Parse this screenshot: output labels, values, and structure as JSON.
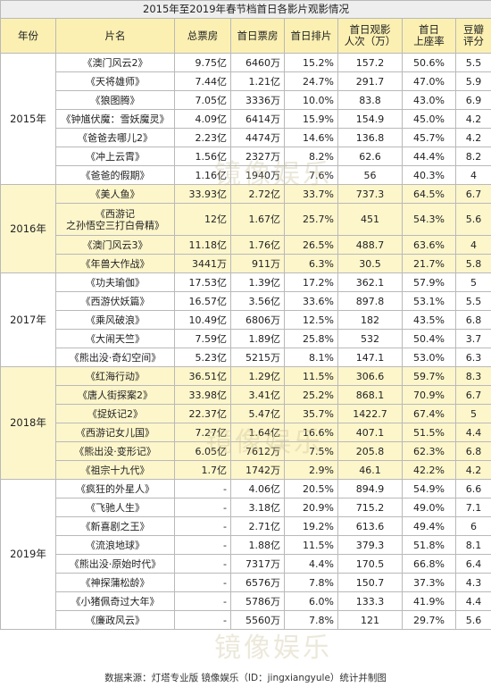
{
  "title": "2015年至2019年春节档首日各影片观影情况",
  "header": [
    "年份",
    "片名",
    "总票房",
    "首日票房",
    "首日排片",
    "首日观影\n人次（万）",
    "首日\n上座率",
    "豆瓣\n评分"
  ],
  "groups": [
    {
      "year": "2015年",
      "rows": [
        [
          "《澳门风云2》",
          "9.75亿",
          "6460万",
          "15.2%",
          "157.2",
          "50.6%",
          "5.5"
        ],
        [
          "《天将雄师》",
          "7.44亿",
          "1.21亿",
          "24.7%",
          "291.7",
          "47.0%",
          "5.9"
        ],
        [
          "《狼图腾》",
          "7.05亿",
          "3336万",
          "10.0%",
          "83.8",
          "43.0%",
          "6.9"
        ],
        [
          "《钟馗伏魔：雪妖魔灵》",
          "4.09亿",
          "6414万",
          "15.9%",
          "154.9",
          "45.0%",
          "4.2"
        ],
        [
          "《爸爸去哪儿2》",
          "2.23亿",
          "4474万",
          "14.6%",
          "136.8",
          "45.7%",
          "4.2"
        ],
        [
          "《冲上云霄》",
          "1.56亿",
          "2327万",
          "8.2%",
          "62.6",
          "44.4%",
          "8.2"
        ],
        [
          "《爸爸的假期》",
          "1.16亿",
          "1940万",
          "7.6%",
          "56",
          "40.3%",
          "4"
        ]
      ]
    },
    {
      "year": "2016年",
      "rows": [
        [
          "《美人鱼》",
          "33.93亿",
          "2.72亿",
          "33.7%",
          "737.3",
          "64.5%",
          "6.7"
        ],
        [
          "《西游记\n之孙悟空三打白骨精》",
          "12亿",
          "1.67亿",
          "25.7%",
          "451",
          "54.3%",
          "5.6"
        ],
        [
          "《澳门风云3》",
          "11.18亿",
          "1.76亿",
          "26.5%",
          "488.7",
          "63.6%",
          "4"
        ],
        [
          "《年兽大作战》",
          "3441万",
          "911万",
          "6.3%",
          "30.5",
          "21.7%",
          "5.8"
        ]
      ]
    },
    {
      "year": "2017年",
      "rows": [
        [
          "《功夫瑜伽》",
          "17.53亿",
          "1.39亿",
          "17.2%",
          "362.1",
          "57.9%",
          "5"
        ],
        [
          "《西游伏妖篇》",
          "16.57亿",
          "3.56亿",
          "33.6%",
          "897.8",
          "53.1%",
          "5.5"
        ],
        [
          "《乘风破浪》",
          "10.49亿",
          "6806万",
          "12.5%",
          "182",
          "43.5%",
          "6.8"
        ],
        [
          "《大闹天竺》",
          "7.59亿",
          "1.89亿",
          "25.8%",
          "532",
          "50.4%",
          "3.7"
        ],
        [
          "《熊出没·奇幻空间》",
          "5.23亿",
          "5215万",
          "8.1%",
          "147.1",
          "53.0%",
          "6.3"
        ]
      ]
    },
    {
      "year": "2018年",
      "rows": [
        [
          "《红海行动》",
          "36.51亿",
          "1.29亿",
          "11.5%",
          "306.6",
          "59.7%",
          "8.3"
        ],
        [
          "《唐人街探案2》",
          "33.98亿",
          "3.41亿",
          "25.2%",
          "868.1",
          "70.9%",
          "6.7"
        ],
        [
          "《捉妖记2》",
          "22.37亿",
          "5.47亿",
          "35.7%",
          "1422.7",
          "67.4%",
          "5"
        ],
        [
          "《西游记女儿国》",
          "7.27亿",
          "1.64亿",
          "16.6%",
          "407.1",
          "51.5%",
          "4.4"
        ],
        [
          "《熊出没·变形记》",
          "6.05亿",
          "7612万",
          "7.5%",
          "205.8",
          "62.3%",
          "6.8"
        ],
        [
          "《祖宗十九代》",
          "1.7亿",
          "1742万",
          "2.9%",
          "46.1",
          "42.2%",
          "4.2"
        ]
      ]
    },
    {
      "year": "2019年",
      "rows": [
        [
          "《疯狂的外星人》",
          "-",
          "4.06亿",
          "20.5%",
          "894.9",
          "54.9%",
          "6.6"
        ],
        [
          "《飞驰人生》",
          "-",
          "3.18亿",
          "20.9%",
          "715.2",
          "49.0%",
          "7.1"
        ],
        [
          "《新喜剧之王》",
          "-",
          "2.71亿",
          "19.2%",
          "613.6",
          "49.4%",
          "6"
        ],
        [
          "《流浪地球》",
          "-",
          "1.88亿",
          "11.5%",
          "379.3",
          "51.8%",
          "8.1"
        ],
        [
          "《熊出没·原始时代》",
          "-",
          "7317万",
          "4.4%",
          "170.5",
          "66.8%",
          "6.4"
        ],
        [
          "《神探蒲松龄》",
          "-",
          "6576万",
          "7.8%",
          "150.7",
          "37.3%",
          "4.3"
        ],
        [
          "《小猪佩奇过大年》",
          "-",
          "5786万",
          "6.0%",
          "133.3",
          "41.9%",
          "4.4"
        ],
        [
          "《廉政风云》",
          "-",
          "5560万",
          "7.8%",
          "121",
          "29.7%",
          "5.6"
        ]
      ]
    }
  ],
  "watermark": "镜像娱乐",
  "footer": "数据来源：灯塔专业版   镜像娱乐（ID：jingxiangyule）统计并制图"
}
